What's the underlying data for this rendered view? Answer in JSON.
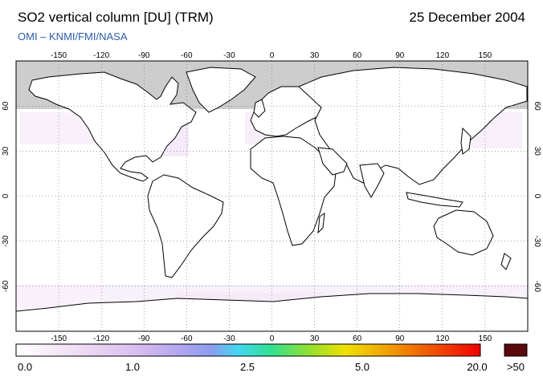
{
  "header": {
    "title": "SO2 vertical column [DU] (TRM)",
    "date": "25 December 2004",
    "credit": "OMI  –  KNMI/FMI/NASA"
  },
  "map": {
    "lon_ticks": [
      "-150",
      "-120",
      "-90",
      "-60",
      "-30",
      "0",
      "30",
      "60",
      "90",
      "120",
      "150"
    ],
    "lat_ticks": [
      "60",
      "30",
      "0",
      "-30",
      "-60"
    ],
    "no_data_color": "#cdcdcd",
    "background_color": "#ffffff",
    "grid": "dotted"
  },
  "colorbar": {
    "labels": [
      "0.0",
      "1.0",
      "2.5",
      "5.0",
      "20.0"
    ],
    "overflow_label": ">50",
    "overflow_color": "#5a0a0a",
    "stops": [
      "#ffffff",
      "#e8d0f0",
      "#c8a8f0",
      "#8c9cf0",
      "#40d0f0",
      "#30e090",
      "#90e030",
      "#f0e000",
      "#f0a000",
      "#f05000",
      "#f00000"
    ]
  }
}
